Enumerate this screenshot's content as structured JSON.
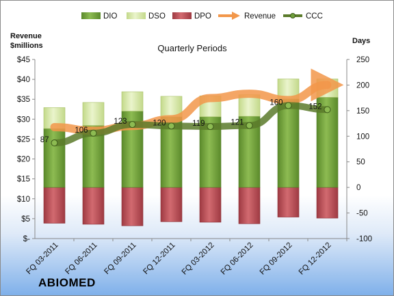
{
  "chart_data": {
    "type": "bar",
    "title": "Quarterly Periods",
    "y_left_title": [
      "Revenue",
      "$millions"
    ],
    "y_right_title": "Days",
    "categories": [
      "FQ 03-2011",
      "FQ 06-2011",
      "FQ 09-2011",
      "FQ 12-2011",
      "FQ 03-2012",
      "FQ 06-2012",
      "FQ 09-2012",
      "FQ 12-2012"
    ],
    "y_left_ticks": [
      "$-",
      "$5",
      "$10",
      "$15",
      "$20",
      "$25",
      "$30",
      "$35",
      "$40",
      "$45"
    ],
    "y_left_range": [
      0,
      45
    ],
    "y_right_range": [
      -100,
      250
    ],
    "y_right_ticks": [
      "-100",
      "-50",
      "0",
      "50",
      "100",
      "150",
      "200",
      "250"
    ],
    "series": [
      {
        "name": "DIO",
        "axis": "right",
        "values": [
          115,
          121,
          149,
          138,
          138,
          139,
          173,
          176
        ]
      },
      {
        "name": "DSO",
        "axis": "right",
        "values": [
          41,
          45,
          38,
          40,
          41,
          42,
          39,
          36
        ]
      },
      {
        "name": "DPO",
        "axis": "right",
        "values": [
          -70,
          -72,
          -75,
          -67,
          -68,
          -71,
          -58,
          -60
        ]
      },
      {
        "name": "Revenue",
        "axis": "left",
        "values": [
          28.0,
          27.1,
          28.3,
          30.0,
          35.3,
          36.4,
          34.8,
          38.6
        ]
      },
      {
        "name": "CCC",
        "axis": "right",
        "values": [
          87,
          106,
          123,
          120,
          119,
          121,
          160,
          152
        ],
        "labels": [
          "87",
          "106",
          "123",
          "120",
          "119",
          "121",
          "160",
          "152"
        ]
      }
    ],
    "colors": {
      "DIO": "#6f9f3c",
      "DSO": "#d4e6a3",
      "DPO": "#b84a52",
      "Revenue": "#f2974a",
      "CCC": "#5a7a2a"
    },
    "legend_position": "top",
    "grid": false
  },
  "company_name": "ABIOMED"
}
